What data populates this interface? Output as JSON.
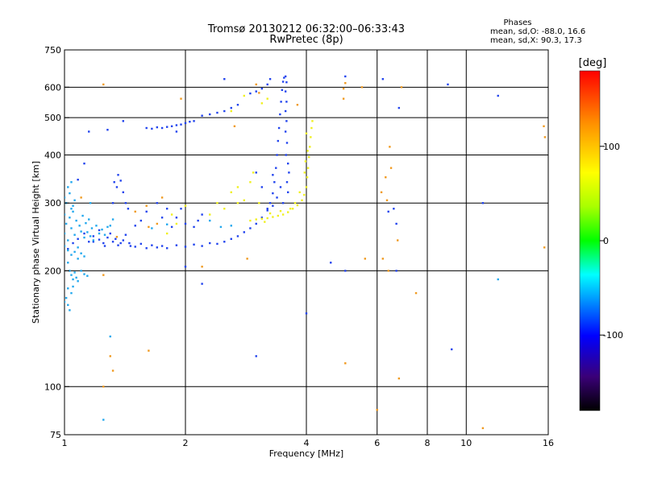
{
  "chart_data": {
    "type": "scatter",
    "title": "Tromsø 20130212 06:32:00–06:33:43",
    "subtitle": "RwPretec (8p)",
    "stats_title": "Phases",
    "stats_o": "mean, sd,O: -88.0, 16.6",
    "stats_x": "mean, sd,X:  90.3, 17.3",
    "xlabel": "Frequency [MHz]",
    "ylabel": "Stationary phase Virtual Height [km]",
    "xscale": "log",
    "yscale": "log",
    "xlim": [
      1,
      16
    ],
    "ylim": [
      75,
      750
    ],
    "xticks": [
      1,
      2,
      4,
      6,
      8,
      10,
      16
    ],
    "xtick_labels": [
      "1",
      "2",
      "4",
      "6",
      "8",
      "10",
      "16"
    ],
    "xgrid": [
      2,
      4,
      6,
      8,
      10
    ],
    "yticks": [
      75,
      100,
      200,
      300,
      400,
      500,
      600,
      750
    ],
    "ytick_labels": [
      "75",
      "100",
      "200",
      "300",
      "400",
      "500",
      "600",
      "750"
    ],
    "ygrid": [
      100,
      200,
      300,
      400,
      500,
      600
    ],
    "grid": true,
    "colorbar": {
      "label": "[deg]",
      "range": [
        -180,
        180
      ],
      "ticks": [
        100,
        0,
        -100
      ],
      "tick_labels": [
        "100",
        "0",
        "-100"
      ]
    },
    "series": [
      {
        "color": "#2244ee",
        "points": [
          [
            1.02,
            228
          ],
          [
            1.05,
            236
          ],
          [
            1.08,
            242
          ],
          [
            1.12,
            250
          ],
          [
            1.15,
            238
          ],
          [
            1.18,
            246
          ],
          [
            1.22,
            241
          ],
          [
            1.25,
            236
          ],
          [
            1.28,
            244
          ],
          [
            1.32,
            238
          ],
          [
            1.36,
            233
          ],
          [
            1.4,
            240
          ],
          [
            1.45,
            236
          ],
          [
            1.5,
            231
          ],
          [
            1.55,
            235
          ],
          [
            1.6,
            229
          ],
          [
            1.65,
            233
          ],
          [
            1.7,
            230
          ],
          [
            1.75,
            232
          ],
          [
            1.8,
            229
          ],
          [
            1.9,
            233
          ],
          [
            2.0,
            231
          ],
          [
            2.1,
            234
          ],
          [
            2.2,
            232
          ],
          [
            2.3,
            236
          ],
          [
            2.4,
            235
          ],
          [
            2.5,
            238
          ],
          [
            2.6,
            242
          ],
          [
            2.7,
            246
          ],
          [
            2.8,
            252
          ],
          [
            2.9,
            258
          ],
          [
            3.0,
            265
          ],
          [
            3.1,
            275
          ],
          [
            3.2,
            287
          ],
          [
            3.25,
            300
          ],
          [
            3.3,
            318
          ],
          [
            3.33,
            340
          ],
          [
            3.36,
            370
          ],
          [
            3.38,
            400
          ],
          [
            3.4,
            435
          ],
          [
            3.42,
            470
          ],
          [
            3.44,
            510
          ],
          [
            3.46,
            550
          ],
          [
            3.48,
            590
          ],
          [
            3.5,
            620
          ],
          [
            3.52,
            635
          ],
          [
            3.55,
            640
          ],
          [
            3.57,
            618
          ],
          [
            3.55,
            585
          ],
          [
            3.57,
            550
          ],
          [
            3.55,
            520
          ],
          [
            3.57,
            490
          ],
          [
            3.55,
            460
          ],
          [
            3.58,
            430
          ],
          [
            3.56,
            400
          ],
          [
            3.6,
            380
          ],
          [
            3.62,
            360
          ],
          [
            3.58,
            340
          ],
          [
            3.6,
            320
          ],
          [
            3.5,
            300
          ],
          [
            3.45,
            330
          ],
          [
            3.38,
            310
          ],
          [
            3.3,
            295
          ],
          [
            3.2,
            290
          ],
          [
            1.18,
            238
          ],
          [
            1.22,
            255
          ],
          [
            1.26,
            232
          ],
          [
            1.3,
            250
          ],
          [
            1.34,
            242
          ],
          [
            1.38,
            236
          ],
          [
            1.42,
            248
          ],
          [
            1.46,
            232
          ],
          [
            1.32,
            300
          ],
          [
            1.35,
            330
          ],
          [
            1.38,
            343
          ],
          [
            1.4,
            320
          ],
          [
            1.42,
            300
          ],
          [
            1.44,
            290
          ],
          [
            1.36,
            355
          ],
          [
            1.33,
            340
          ],
          [
            1.6,
            470
          ],
          [
            1.65,
            468
          ],
          [
            1.7,
            472
          ],
          [
            1.75,
            470
          ],
          [
            1.8,
            473
          ],
          [
            1.85,
            475
          ],
          [
            1.9,
            478
          ],
          [
            1.95,
            480
          ],
          [
            2.0,
            484
          ],
          [
            2.05,
            488
          ],
          [
            2.1,
            490
          ],
          [
            2.2,
            506
          ],
          [
            2.3,
            510
          ],
          [
            2.4,
            515
          ],
          [
            2.5,
            520
          ],
          [
            2.6,
            530
          ],
          [
            2.7,
            540
          ],
          [
            2.9,
            578
          ],
          [
            3.0,
            585
          ],
          [
            3.1,
            595
          ],
          [
            3.2,
            610
          ],
          [
            3.25,
            630
          ],
          [
            1.28,
            465
          ],
          [
            1.4,
            490
          ],
          [
            1.7,
            300
          ],
          [
            1.8,
            290
          ],
          [
            1.9,
            275
          ],
          [
            2.0,
            265
          ],
          [
            2.1,
            260
          ],
          [
            2.15,
            270
          ],
          [
            2.2,
            280
          ],
          [
            1.85,
            260
          ],
          [
            1.95,
            290
          ],
          [
            1.75,
            275
          ],
          [
            1.55,
            270
          ],
          [
            1.6,
            285
          ],
          [
            1.5,
            262
          ],
          [
            3.0,
            360
          ],
          [
            3.1,
            330
          ],
          [
            3.3,
            355
          ],
          [
            5.0,
            640
          ],
          [
            6.2,
            630
          ],
          [
            6.4,
            285
          ],
          [
            6.6,
            290
          ],
          [
            6.7,
            265
          ],
          [
            6.8,
            530
          ],
          [
            9.0,
            610
          ],
          [
            12.0,
            570
          ],
          [
            11.0,
            300
          ],
          [
            9.2,
            125
          ],
          [
            4.6,
            210
          ],
          [
            5.0,
            200
          ],
          [
            6.7,
            200
          ],
          [
            4.0,
            155
          ],
          [
            3.0,
            120
          ],
          [
            2.0,
            205
          ],
          [
            2.2,
            185
          ],
          [
            1.15,
            460
          ],
          [
            1.08,
            345
          ],
          [
            1.12,
            380
          ],
          [
            2.5,
            630
          ],
          [
            1.9,
            460
          ]
        ]
      },
      {
        "color": "#22a8ee",
        "points": [
          [
            1.0,
            250
          ],
          [
            1.01,
            265
          ],
          [
            1.02,
            240
          ],
          [
            1.03,
            275
          ],
          [
            1.04,
            258
          ],
          [
            1.05,
            285
          ],
          [
            1.06,
            248
          ],
          [
            1.07,
            270
          ],
          [
            1.08,
            230
          ],
          [
            1.09,
            262
          ],
          [
            1.1,
            253
          ],
          [
            1.11,
            278
          ],
          [
            1.12,
            244
          ],
          [
            1.13,
            266
          ],
          [
            1.14,
            252
          ],
          [
            1.15,
            272
          ],
          [
            1.16,
            246
          ],
          [
            1.17,
            258
          ],
          [
            1.18,
            240
          ],
          [
            1.2,
            262
          ],
          [
            1.22,
            250
          ],
          [
            1.24,
            256
          ],
          [
            1.26,
            248
          ],
          [
            1.28,
            260
          ],
          [
            1.01,
            300
          ],
          [
            1.03,
            318
          ],
          [
            1.02,
            330
          ],
          [
            1.04,
            290
          ],
          [
            1.06,
            305
          ],
          [
            1.05,
            295
          ],
          [
            1.0,
            280
          ],
          [
            1.02,
            210
          ],
          [
            1.03,
            200
          ],
          [
            1.04,
            195
          ],
          [
            1.05,
            190
          ],
          [
            1.06,
            198
          ],
          [
            1.07,
            192
          ],
          [
            1.08,
            188
          ],
          [
            1.02,
            180
          ],
          [
            1.01,
            170
          ],
          [
            1.02,
            163
          ],
          [
            1.03,
            158
          ],
          [
            1.0,
            166
          ],
          [
            1.04,
            175
          ],
          [
            1.05,
            182
          ],
          [
            1.1,
            200
          ],
          [
            1.12,
            196
          ],
          [
            1.14,
            194
          ],
          [
            1.0,
            232
          ],
          [
            1.02,
            226
          ],
          [
            1.04,
            220
          ],
          [
            1.06,
            224
          ],
          [
            1.08,
            215
          ],
          [
            1.1,
            222
          ],
          [
            1.12,
            218
          ],
          [
            1.3,
            135
          ],
          [
            1.25,
            82
          ],
          [
            1.8,
            264
          ],
          [
            2.3,
            270
          ],
          [
            2.45,
            260
          ],
          [
            2.6,
            262
          ],
          [
            1.65,
            258
          ],
          [
            12.0,
            190
          ],
          [
            1.16,
            300
          ],
          [
            1.0,
            310
          ],
          [
            1.04,
            340
          ],
          [
            1.3,
            262
          ],
          [
            1.32,
            272
          ]
        ]
      },
      {
        "color": "#f0f020",
        "points": [
          [
            2.9,
            270
          ],
          [
            3.0,
            272
          ],
          [
            3.1,
            273
          ],
          [
            3.2,
            274
          ],
          [
            3.3,
            276
          ],
          [
            3.4,
            278
          ],
          [
            3.5,
            280
          ],
          [
            3.6,
            284
          ],
          [
            3.7,
            290
          ],
          [
            3.8,
            296
          ],
          [
            3.9,
            305
          ],
          [
            3.95,
            315
          ],
          [
            4.0,
            330
          ],
          [
            4.02,
            350
          ],
          [
            4.04,
            370
          ],
          [
            4.06,
            395
          ],
          [
            4.08,
            420
          ],
          [
            4.1,
            445
          ],
          [
            4.12,
            470
          ],
          [
            4.14,
            490
          ],
          [
            4.0,
            455
          ],
          [
            4.03,
            410
          ],
          [
            3.98,
            385
          ],
          [
            3.96,
            360
          ],
          [
            3.85,
            320
          ],
          [
            3.75,
            300
          ],
          [
            3.65,
            290
          ],
          [
            3.15,
            268
          ],
          [
            3.25,
            282
          ],
          [
            3.45,
            286
          ],
          [
            2.7,
            300
          ],
          [
            2.8,
            305
          ],
          [
            2.5,
            290
          ],
          [
            2.4,
            300
          ],
          [
            2.3,
            280
          ],
          [
            1.9,
            265
          ],
          [
            2.0,
            295
          ],
          [
            1.85,
            280
          ],
          [
            1.8,
            250
          ],
          [
            2.6,
            320
          ],
          [
            2.7,
            330
          ],
          [
            2.9,
            340
          ],
          [
            3.05,
            300
          ],
          [
            3.1,
            545
          ],
          [
            3.2,
            560
          ],
          [
            2.8,
            570
          ],
          [
            2.95,
            360
          ],
          [
            2.6,
            520
          ]
        ]
      },
      {
        "color": "#f09a20",
        "points": [
          [
            1.25,
            610
          ],
          [
            1.35,
            245
          ],
          [
            1.5,
            285
          ],
          [
            1.6,
            295
          ],
          [
            1.7,
            265
          ],
          [
            1.62,
            260
          ],
          [
            1.25,
            195
          ],
          [
            1.75,
            310
          ],
          [
            1.95,
            560
          ],
          [
            2.2,
            205
          ],
          [
            2.65,
            475
          ],
          [
            2.85,
            215
          ],
          [
            3.0,
            610
          ],
          [
            3.05,
            580
          ],
          [
            3.8,
            540
          ],
          [
            4.95,
            595
          ],
          [
            5.0,
            615
          ],
          [
            5.5,
            600
          ],
          [
            5.6,
            215
          ],
          [
            6.15,
            320
          ],
          [
            6.3,
            350
          ],
          [
            6.35,
            305
          ],
          [
            6.45,
            420
          ],
          [
            6.5,
            370
          ],
          [
            6.9,
            600
          ],
          [
            6.2,
            215
          ],
          [
            6.4,
            200
          ],
          [
            6.75,
            240
          ],
          [
            7.5,
            175
          ],
          [
            6.8,
            105
          ],
          [
            6.0,
            87
          ],
          [
            11.0,
            78
          ],
          [
            15.6,
            475
          ],
          [
            15.7,
            445
          ],
          [
            15.65,
            230
          ],
          [
            5.0,
            115
          ],
          [
            1.62,
            124
          ],
          [
            1.32,
            110
          ],
          [
            1.25,
            100
          ],
          [
            1.1,
            310
          ],
          [
            1.3,
            120
          ],
          [
            4.95,
            560
          ]
        ]
      }
    ]
  }
}
